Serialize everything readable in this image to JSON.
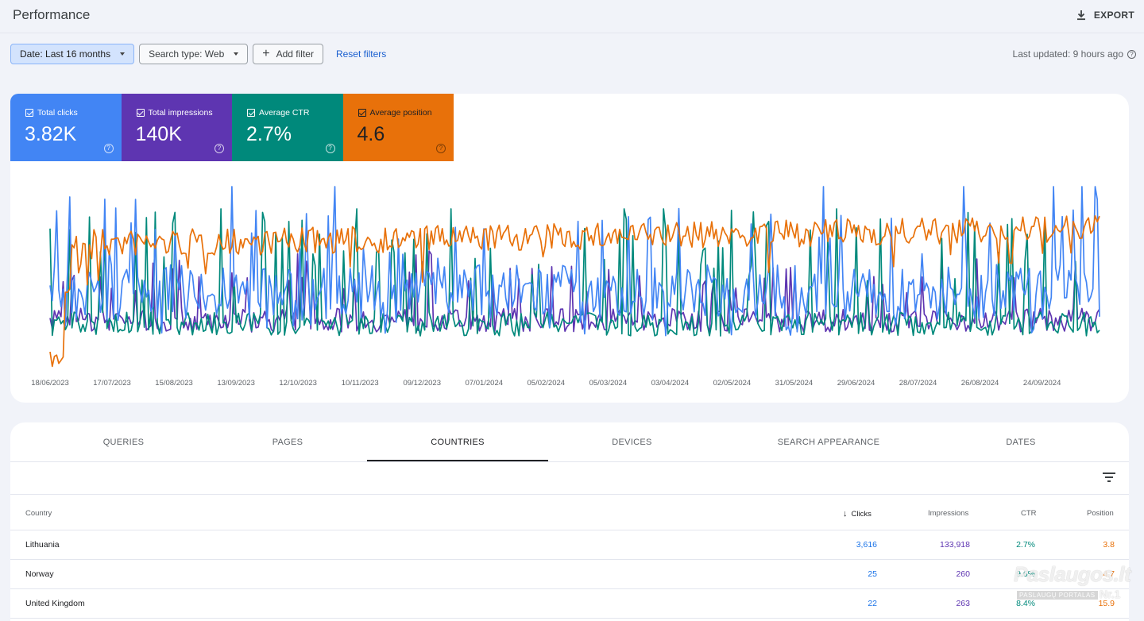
{
  "header": {
    "title": "Performance",
    "export_label": "EXPORT"
  },
  "filters": {
    "date_label": "Date: Last 16 months",
    "search_type_label": "Search type: Web",
    "add_filter_label": "Add filter",
    "reset_label": "Reset filters",
    "last_updated": "Last updated: 9 hours ago"
  },
  "metrics": [
    {
      "label": "Total clicks",
      "value": "3.82K",
      "color": "#4285f4"
    },
    {
      "label": "Total impressions",
      "value": "140K",
      "color": "#5e35b1"
    },
    {
      "label": "Average CTR",
      "value": "2.7%",
      "color": "#00897b"
    },
    {
      "label": "Average position",
      "value": "4.6",
      "color": "#e8710a"
    }
  ],
  "chart_data": {
    "type": "line",
    "x_ticks": [
      "18/06/2023",
      "17/07/2023",
      "15/08/2023",
      "13/09/2023",
      "12/10/2023",
      "10/11/2023",
      "09/12/2023",
      "07/01/2024",
      "05/02/2024",
      "05/03/2024",
      "03/04/2024",
      "02/05/2024",
      "31/05/2024",
      "29/06/2024",
      "28/07/2024",
      "26/08/2024",
      "24/09/2024"
    ],
    "series": [
      {
        "name": "Total clicks",
        "color": "#4285f4"
      },
      {
        "name": "Total impressions",
        "color": "#5e35b1"
      },
      {
        "name": "Average CTR",
        "color": "#00897b"
      },
      {
        "name": "Average position",
        "color": "#e8710a"
      }
    ],
    "grid": false
  },
  "tabs": [
    "QUERIES",
    "PAGES",
    "COUNTRIES",
    "DEVICES",
    "SEARCH APPEARANCE",
    "DATES"
  ],
  "active_tab": "COUNTRIES",
  "table": {
    "columns": [
      "Country",
      "Clicks",
      "Impressions",
      "CTR",
      "Position"
    ],
    "rows": [
      {
        "country": "Lithuania",
        "clicks": "3,616",
        "impressions": "133,918",
        "ctr": "2.7%",
        "position": "3.8"
      },
      {
        "country": "Norway",
        "clicks": "25",
        "impressions": "260",
        "ctr": "9.6%",
        "position": "4.7"
      },
      {
        "country": "United Kingdom",
        "clicks": "22",
        "impressions": "263",
        "ctr": "8.4%",
        "position": "15.9"
      }
    ]
  },
  "watermark": {
    "main": "Paslaugos.lt",
    "sub": "PASLAUGŲ PORTALAS",
    "nr": "Nr.1"
  }
}
